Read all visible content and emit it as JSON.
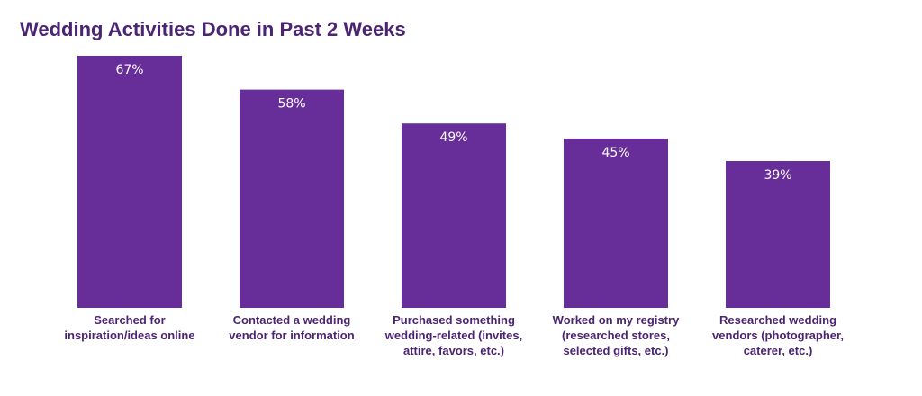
{
  "chart_data": {
    "type": "bar",
    "title": "Wedding Activities Done in Past 2 Weeks",
    "categories": [
      [
        "Searched for",
        "inspiration/ideas online"
      ],
      [
        "Contacted a wedding",
        "vendor for information"
      ],
      [
        "Purchased something",
        "wedding-related (invites,",
        "attire, favors, etc.)"
      ],
      [
        "Worked on my registry",
        "(researched stores,",
        "selected gifts, etc.)"
      ],
      [
        "Researched wedding",
        "vendors (photographer,",
        "caterer, etc.)"
      ]
    ],
    "values": [
      67,
      58,
      49,
      45,
      39
    ],
    "data_labels": [
      "67%",
      "58%",
      "49%",
      "45%",
      "39%"
    ],
    "value_unit": "%",
    "ylim": [
      0,
      67
    ],
    "grid": false,
    "legend": "none",
    "colors": {
      "bar": "#672d98",
      "title": "#4b2472",
      "label": "#4b2472",
      "value_text": "#ffffff"
    }
  }
}
